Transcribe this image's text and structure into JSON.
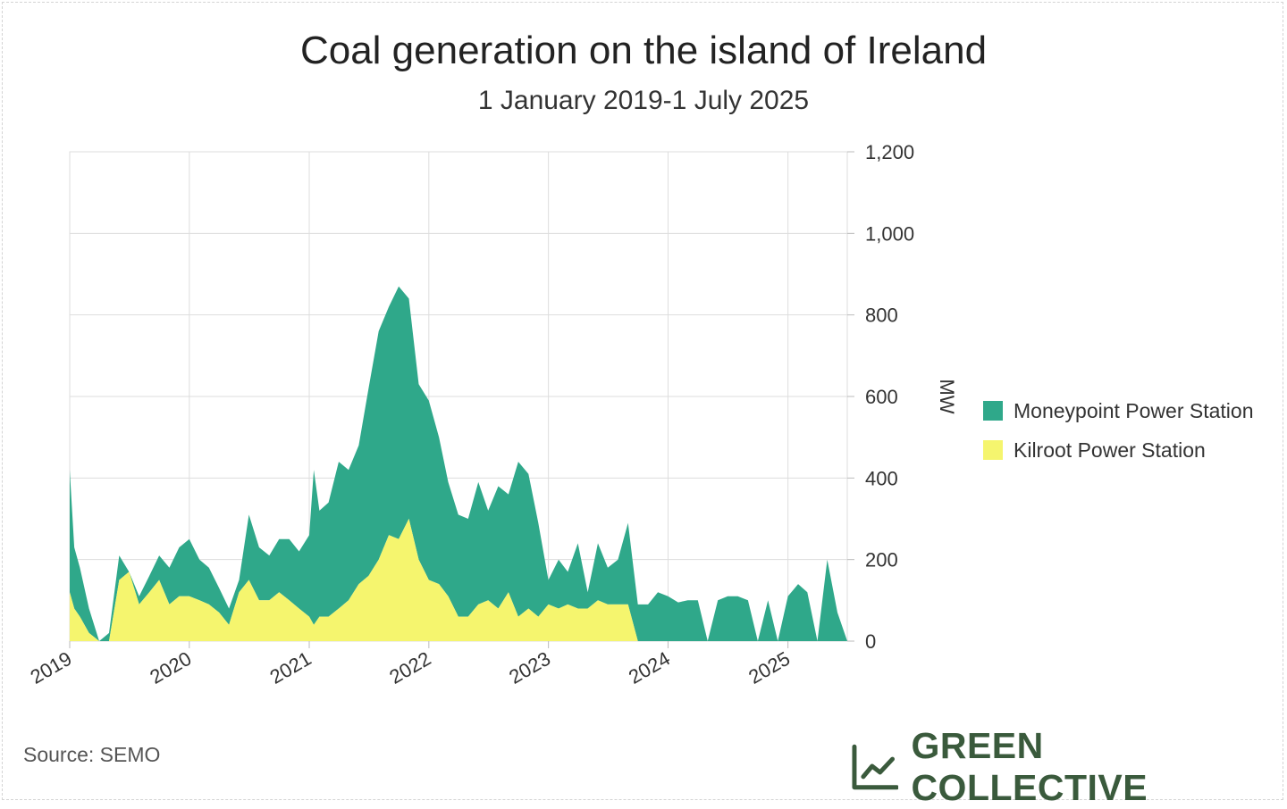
{
  "colors": {
    "moneypoint": "#2fa88a",
    "kilroot": "#f5f56e",
    "grid": "#dddddd",
    "brand": "#3a5a3c"
  },
  "source": "Source: SEMO",
  "brand": {
    "name": "GREEN COLLECTIVE",
    "icon": "line-chart-icon"
  },
  "chart_data": {
    "type": "area",
    "stacked": true,
    "title": "Coal generation on the island of Ireland",
    "subtitle": "1 January 2019-1 July 2025",
    "ylabel": "MW",
    "xlabel": "",
    "ylim": [
      0,
      1200
    ],
    "xlim": [
      "2019-01-01",
      "2025-07-01"
    ],
    "y_ticks": [
      "0",
      "200",
      "400",
      "600",
      "800",
      "1,000",
      "1,200"
    ],
    "x_ticks": [
      "2019",
      "2020",
      "2021",
      "2022",
      "2023",
      "2024",
      "2025"
    ],
    "grid": true,
    "legend_position": "right",
    "series": [
      {
        "name": "Moneypoint Power Station",
        "color": "#2fa88a",
        "x": [
          "2019-01-01",
          "2019-01-15",
          "2019-02-01",
          "2019-03-01",
          "2019-04-01",
          "2019-05-01",
          "2019-06-01",
          "2019-07-01",
          "2019-08-01",
          "2019-09-01",
          "2019-10-01",
          "2019-11-01",
          "2019-12-01",
          "2020-01-01",
          "2020-02-01",
          "2020-03-01",
          "2020-04-01",
          "2020-05-01",
          "2020-06-01",
          "2020-07-01",
          "2020-08-01",
          "2020-09-01",
          "2020-10-01",
          "2020-11-01",
          "2020-12-01",
          "2021-01-01",
          "2021-01-15",
          "2021-02-01",
          "2021-03-01",
          "2021-04-01",
          "2021-05-01",
          "2021-06-01",
          "2021-07-01",
          "2021-08-01",
          "2021-09-01",
          "2021-10-01",
          "2021-11-01",
          "2021-12-01",
          "2022-01-01",
          "2022-02-01",
          "2022-03-01",
          "2022-04-01",
          "2022-05-01",
          "2022-06-01",
          "2022-07-01",
          "2022-08-01",
          "2022-09-01",
          "2022-10-01",
          "2022-11-01",
          "2022-12-01",
          "2023-01-01",
          "2023-02-01",
          "2023-03-01",
          "2023-04-01",
          "2023-05-01",
          "2023-06-01",
          "2023-07-01",
          "2023-08-01",
          "2023-09-01",
          "2023-10-01",
          "2023-11-01",
          "2023-12-01",
          "2024-01-01",
          "2024-02-01",
          "2024-03-01",
          "2024-04-01",
          "2024-05-01",
          "2024-06-01",
          "2024-07-01",
          "2024-08-01",
          "2024-09-01",
          "2024-10-01",
          "2024-11-01",
          "2024-12-01",
          "2025-01-01",
          "2025-02-01",
          "2025-03-01",
          "2025-04-01",
          "2025-05-01",
          "2025-06-01",
          "2025-07-01"
        ],
        "values": [
          300,
          150,
          120,
          60,
          0,
          20,
          60,
          0,
          20,
          40,
          60,
          90,
          120,
          140,
          100,
          90,
          60,
          40,
          30,
          160,
          130,
          110,
          130,
          150,
          140,
          200,
          380,
          260,
          280,
          360,
          320,
          340,
          460,
          560,
          560,
          620,
          540,
          430,
          440,
          360,
          280,
          250,
          240,
          300,
          220,
          300,
          240,
          380,
          330,
          230,
          60,
          120,
          80,
          160,
          40,
          140,
          90,
          110,
          200,
          90,
          90,
          120,
          110,
          95,
          100,
          100,
          0,
          100,
          110,
          110,
          100,
          0,
          100,
          0,
          110,
          140,
          120,
          0,
          200,
          70,
          0
        ]
      },
      {
        "name": "Kilroot Power Station",
        "color": "#f5f56e",
        "x": [
          "2019-01-01",
          "2019-01-15",
          "2019-02-01",
          "2019-03-01",
          "2019-04-01",
          "2019-05-01",
          "2019-06-01",
          "2019-07-01",
          "2019-08-01",
          "2019-09-01",
          "2019-10-01",
          "2019-11-01",
          "2019-12-01",
          "2020-01-01",
          "2020-02-01",
          "2020-03-01",
          "2020-04-01",
          "2020-05-01",
          "2020-06-01",
          "2020-07-01",
          "2020-08-01",
          "2020-09-01",
          "2020-10-01",
          "2020-11-01",
          "2020-12-01",
          "2021-01-01",
          "2021-01-15",
          "2021-02-01",
          "2021-03-01",
          "2021-04-01",
          "2021-05-01",
          "2021-06-01",
          "2021-07-01",
          "2021-08-01",
          "2021-09-01",
          "2021-10-01",
          "2021-11-01",
          "2021-12-01",
          "2022-01-01",
          "2022-02-01",
          "2022-03-01",
          "2022-04-01",
          "2022-05-01",
          "2022-06-01",
          "2022-07-01",
          "2022-08-01",
          "2022-09-01",
          "2022-10-01",
          "2022-11-01",
          "2022-12-01",
          "2023-01-01",
          "2023-02-01",
          "2023-03-01",
          "2023-04-01",
          "2023-05-01",
          "2023-06-01",
          "2023-07-01",
          "2023-08-01",
          "2023-09-01",
          "2023-10-01",
          "2023-11-01",
          "2023-12-01",
          "2024-01-01",
          "2024-02-01",
          "2024-03-01",
          "2024-04-01",
          "2024-05-01",
          "2024-06-01",
          "2024-07-01",
          "2024-08-01",
          "2024-09-01",
          "2024-10-01",
          "2024-11-01",
          "2024-12-01",
          "2025-01-01",
          "2025-02-01",
          "2025-03-01",
          "2025-04-01",
          "2025-05-01",
          "2025-06-01",
          "2025-07-01"
        ],
        "values": [
          120,
          80,
          60,
          20,
          0,
          0,
          150,
          170,
          90,
          120,
          150,
          90,
          110,
          110,
          100,
          90,
          70,
          40,
          120,
          150,
          100,
          100,
          120,
          100,
          80,
          60,
          40,
          60,
          60,
          80,
          100,
          140,
          160,
          200,
          260,
          250,
          300,
          200,
          150,
          140,
          110,
          60,
          60,
          90,
          100,
          80,
          120,
          60,
          80,
          60,
          90,
          80,
          90,
          80,
          80,
          100,
          90,
          90,
          90,
          0,
          0,
          0,
          0,
          0,
          0,
          0,
          0,
          0,
          0,
          0,
          0,
          0,
          0,
          0,
          0,
          0,
          0,
          0,
          0,
          0,
          0
        ]
      }
    ]
  }
}
